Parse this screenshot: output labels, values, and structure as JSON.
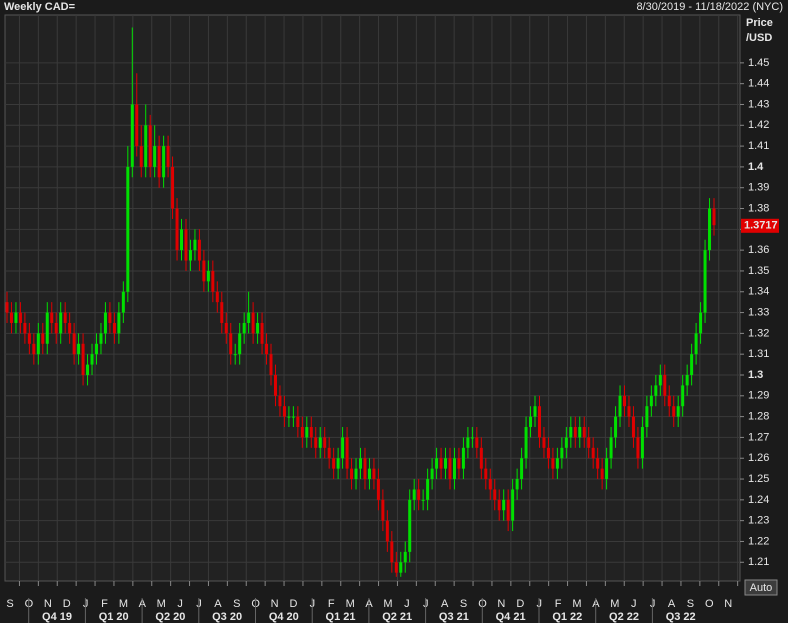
{
  "header": {
    "title": "Weekly CAD=",
    "range": "8/30/2019 - 11/18/2022 (NYC)",
    "button": "Auto"
  },
  "chart_data": {
    "type": "candlestick",
    "y_label": [
      "Price",
      "/USD"
    ],
    "open": [
      1.335,
      1.33,
      1.325,
      1.33,
      1.325,
      1.32,
      1.315,
      1.31,
      1.32,
      1.315,
      1.33,
      1.325,
      1.32,
      1.33,
      1.325,
      1.32,
      1.31,
      1.315,
      1.3,
      1.305,
      1.31,
      1.315,
      1.32,
      1.33,
      1.325,
      1.32,
      1.33,
      1.34,
      1.4,
      1.43,
      1.41,
      1.4,
      1.42,
      1.4,
      1.41,
      1.395,
      1.41,
      1.4,
      1.38,
      1.36,
      1.37,
      1.355,
      1.36,
      1.365,
      1.355,
      1.345,
      1.35,
      1.34,
      1.335,
      1.325,
      1.32,
      1.31,
      1.31,
      1.32,
      1.325,
      1.33,
      1.32,
      1.325,
      1.315,
      1.31,
      1.3,
      1.29,
      1.285,
      1.28,
      1.28,
      1.28,
      1.275,
      1.27,
      1.275,
      1.27,
      1.265,
      1.27,
      1.265,
      1.26,
      1.255,
      1.26,
      1.27,
      1.255,
      1.25,
      1.255,
      1.26,
      1.25,
      1.255,
      1.25,
      1.24,
      1.23,
      1.22,
      1.21,
      1.205,
      1.21,
      1.215,
      1.24,
      1.245,
      1.24,
      1.24,
      1.25,
      1.255,
      1.26,
      1.255,
      1.26,
      1.25,
      1.26,
      1.255,
      1.265,
      1.27,
      1.27,
      1.265,
      1.255,
      1.25,
      1.245,
      1.24,
      1.235,
      1.24,
      1.23,
      1.245,
      1.25,
      1.26,
      1.275,
      1.28,
      1.285,
      1.27,
      1.265,
      1.26,
      1.255,
      1.26,
      1.265,
      1.27,
      1.275,
      1.27,
      1.275,
      1.27,
      1.265,
      1.26,
      1.255,
      1.25,
      1.26,
      1.27,
      1.28,
      1.29,
      1.285,
      1.28,
      1.27,
      1.26,
      1.275,
      1.285,
      1.29,
      1.295,
      1.3,
      1.29,
      1.285,
      1.28,
      1.285,
      1.295,
      1.3,
      1.31,
      1.32,
      1.33,
      1.36,
      1.38
    ],
    "high": [
      1.34,
      1.335,
      1.335,
      1.335,
      1.33,
      1.325,
      1.32,
      1.325,
      1.325,
      1.335,
      1.335,
      1.33,
      1.335,
      1.335,
      1.33,
      1.325,
      1.32,
      1.32,
      1.31,
      1.315,
      1.32,
      1.325,
      1.335,
      1.335,
      1.33,
      1.335,
      1.345,
      1.41,
      1.467,
      1.445,
      1.42,
      1.43,
      1.425,
      1.42,
      1.415,
      1.415,
      1.415,
      1.405,
      1.385,
      1.375,
      1.375,
      1.365,
      1.37,
      1.37,
      1.36,
      1.355,
      1.355,
      1.345,
      1.34,
      1.33,
      1.325,
      1.315,
      1.325,
      1.33,
      1.34,
      1.335,
      1.33,
      1.33,
      1.32,
      1.315,
      1.305,
      1.295,
      1.29,
      1.285,
      1.285,
      1.285,
      1.28,
      1.28,
      1.28,
      1.275,
      1.275,
      1.275,
      1.27,
      1.265,
      1.265,
      1.275,
      1.275,
      1.26,
      1.26,
      1.265,
      1.265,
      1.26,
      1.26,
      1.255,
      1.245,
      1.235,
      1.225,
      1.215,
      1.215,
      1.22,
      1.245,
      1.25,
      1.25,
      1.245,
      1.255,
      1.26,
      1.265,
      1.265,
      1.265,
      1.265,
      1.265,
      1.265,
      1.27,
      1.275,
      1.275,
      1.275,
      1.27,
      1.26,
      1.255,
      1.25,
      1.245,
      1.245,
      1.245,
      1.25,
      1.255,
      1.265,
      1.28,
      1.285,
      1.29,
      1.29,
      1.275,
      1.27,
      1.265,
      1.265,
      1.27,
      1.275,
      1.28,
      1.28,
      1.28,
      1.28,
      1.275,
      1.27,
      1.265,
      1.26,
      1.265,
      1.275,
      1.285,
      1.295,
      1.295,
      1.29,
      1.285,
      1.275,
      1.28,
      1.29,
      1.295,
      1.3,
      1.305,
      1.305,
      1.295,
      1.29,
      1.29,
      1.3,
      1.305,
      1.315,
      1.325,
      1.335,
      1.365,
      1.385,
      1.385
    ],
    "low": [
      1.325,
      1.32,
      1.32,
      1.32,
      1.315,
      1.31,
      1.305,
      1.305,
      1.31,
      1.31,
      1.32,
      1.315,
      1.315,
      1.32,
      1.315,
      1.305,
      1.305,
      1.295,
      1.295,
      1.3,
      1.305,
      1.31,
      1.315,
      1.32,
      1.315,
      1.315,
      1.325,
      1.335,
      1.395,
      1.405,
      1.395,
      1.395,
      1.395,
      1.395,
      1.39,
      1.39,
      1.395,
      1.375,
      1.355,
      1.355,
      1.35,
      1.35,
      1.355,
      1.35,
      1.34,
      1.34,
      1.335,
      1.33,
      1.32,
      1.315,
      1.305,
      1.305,
      1.305,
      1.315,
      1.32,
      1.315,
      1.315,
      1.31,
      1.305,
      1.295,
      1.285,
      1.28,
      1.275,
      1.275,
      1.275,
      1.27,
      1.265,
      1.265,
      1.265,
      1.26,
      1.26,
      1.26,
      1.255,
      1.25,
      1.25,
      1.255,
      1.25,
      1.245,
      1.245,
      1.25,
      1.245,
      1.245,
      1.245,
      1.235,
      1.225,
      1.215,
      1.205,
      1.203,
      1.203,
      1.205,
      1.21,
      1.235,
      1.235,
      1.235,
      1.235,
      1.245,
      1.25,
      1.25,
      1.25,
      1.245,
      1.245,
      1.25,
      1.25,
      1.26,
      1.265,
      1.26,
      1.25,
      1.245,
      1.24,
      1.235,
      1.23,
      1.23,
      1.225,
      1.225,
      1.24,
      1.245,
      1.255,
      1.27,
      1.275,
      1.265,
      1.26,
      1.255,
      1.25,
      1.25,
      1.255,
      1.26,
      1.265,
      1.265,
      1.265,
      1.265,
      1.26,
      1.255,
      1.25,
      1.245,
      1.245,
      1.255,
      1.265,
      1.275,
      1.28,
      1.275,
      1.265,
      1.255,
      1.255,
      1.27,
      1.28,
      1.285,
      1.29,
      1.285,
      1.28,
      1.275,
      1.275,
      1.28,
      1.29,
      1.295,
      1.305,
      1.315,
      1.325,
      1.355,
      1.367
    ],
    "close": [
      1.33,
      1.325,
      1.33,
      1.325,
      1.32,
      1.315,
      1.31,
      1.32,
      1.315,
      1.33,
      1.325,
      1.32,
      1.33,
      1.325,
      1.32,
      1.31,
      1.315,
      1.3,
      1.305,
      1.31,
      1.315,
      1.32,
      1.33,
      1.325,
      1.32,
      1.33,
      1.34,
      1.4,
      1.43,
      1.41,
      1.4,
      1.42,
      1.4,
      1.41,
      1.395,
      1.41,
      1.4,
      1.38,
      1.36,
      1.37,
      1.355,
      1.36,
      1.365,
      1.355,
      1.345,
      1.35,
      1.34,
      1.335,
      1.325,
      1.32,
      1.31,
      1.31,
      1.32,
      1.325,
      1.33,
      1.32,
      1.325,
      1.315,
      1.31,
      1.3,
      1.29,
      1.285,
      1.28,
      1.28,
      1.28,
      1.275,
      1.27,
      1.275,
      1.27,
      1.265,
      1.27,
      1.265,
      1.26,
      1.255,
      1.26,
      1.27,
      1.255,
      1.25,
      1.255,
      1.26,
      1.25,
      1.255,
      1.25,
      1.24,
      1.23,
      1.22,
      1.21,
      1.205,
      1.21,
      1.215,
      1.24,
      1.245,
      1.24,
      1.24,
      1.25,
      1.255,
      1.26,
      1.255,
      1.26,
      1.25,
      1.26,
      1.255,
      1.265,
      1.27,
      1.27,
      1.265,
      1.255,
      1.25,
      1.245,
      1.24,
      1.235,
      1.24,
      1.23,
      1.245,
      1.25,
      1.26,
      1.275,
      1.28,
      1.285,
      1.27,
      1.265,
      1.26,
      1.255,
      1.26,
      1.265,
      1.27,
      1.275,
      1.27,
      1.275,
      1.27,
      1.265,
      1.26,
      1.255,
      1.25,
      1.26,
      1.27,
      1.28,
      1.29,
      1.285,
      1.28,
      1.27,
      1.26,
      1.275,
      1.285,
      1.29,
      1.295,
      1.3,
      1.29,
      1.285,
      1.28,
      1.285,
      1.295,
      1.3,
      1.31,
      1.32,
      1.33,
      1.36,
      1.38,
      1.372
    ],
    "up_color": "#00e000",
    "down_color": "#e00000",
    "ylim": [
      1.201,
      1.473
    ],
    "yticks": [
      1.21,
      1.22,
      1.23,
      1.24,
      1.25,
      1.26,
      1.27,
      1.28,
      1.29,
      1.3,
      1.31,
      1.32,
      1.33,
      1.34,
      1.35,
      1.36,
      1.37,
      1.38,
      1.39,
      1.4,
      1.41,
      1.42,
      1.43,
      1.44,
      1.45
    ],
    "grid": true,
    "last_price": 1.3717,
    "last_price_color": "#e00000",
    "months": [
      "S",
      "O",
      "N",
      "D",
      "J",
      "F",
      "M",
      "A",
      "M",
      "J",
      "J",
      "A",
      "S",
      "O",
      "N",
      "D",
      "J",
      "F",
      "M",
      "A",
      "M",
      "J",
      "J",
      "A",
      "S",
      "O",
      "N",
      "D",
      "J",
      "F",
      "M",
      "A",
      "M",
      "J",
      "J",
      "A",
      "S",
      "O",
      "N"
    ],
    "quarters": [
      "Q4 19",
      "Q1 20",
      "Q2 20",
      "Q3 20",
      "Q4 20",
      "Q1 21",
      "Q2 21",
      "Q3 21",
      "Q4 21",
      "Q1 22",
      "Q2 22",
      "Q3 22"
    ]
  }
}
